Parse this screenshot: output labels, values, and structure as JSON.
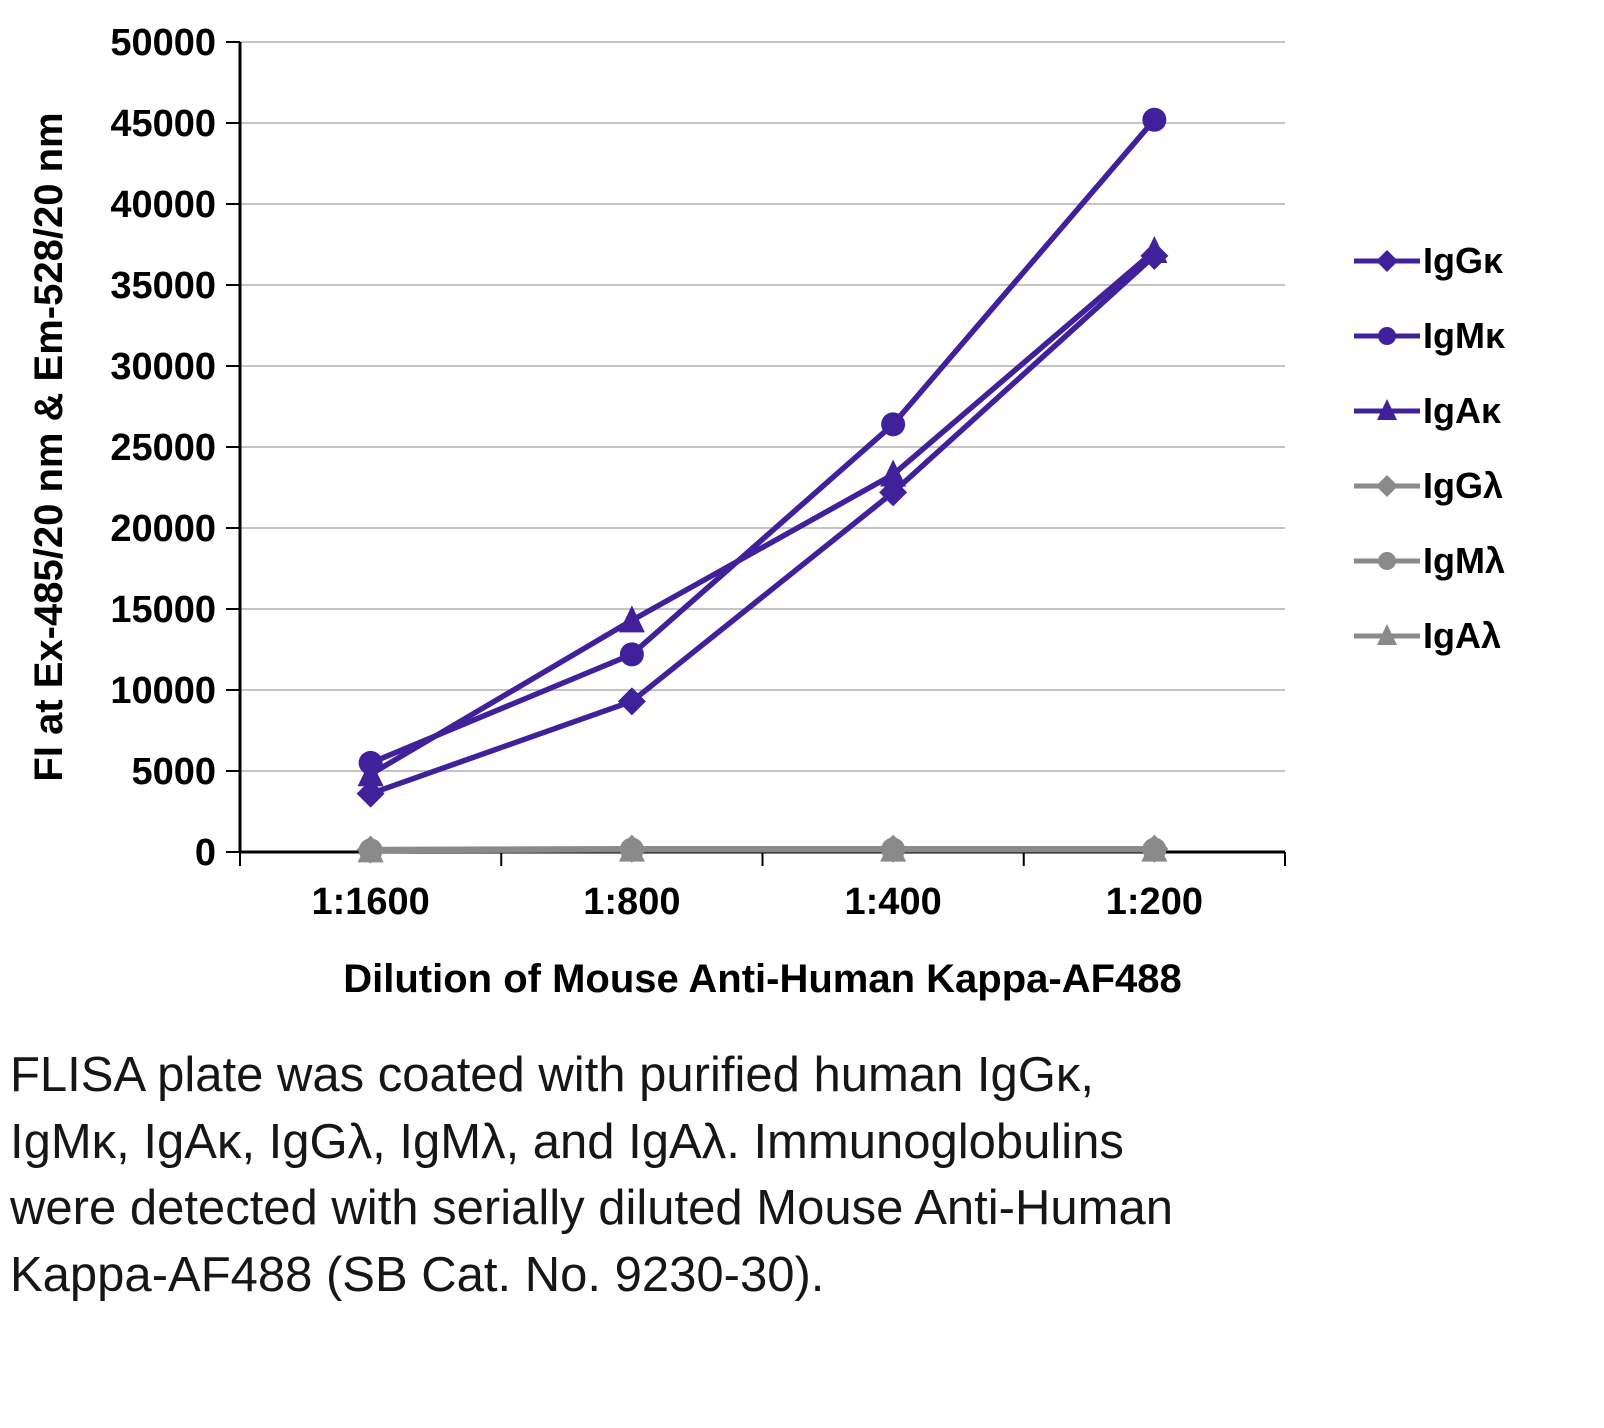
{
  "chart_data": {
    "type": "line",
    "title": "",
    "xlabel": "Dilution of Mouse Anti-Human Kappa-AF488",
    "ylabel": "FI at Ex-485/20 nm & Em-528/20 nm",
    "x_categories": [
      "1:1600",
      "1:800",
      "1:400",
      "1:200"
    ],
    "ylim": [
      0,
      50000
    ],
    "ytick_step": 5000,
    "grid": true,
    "legend_position": "right",
    "colors": {
      "kappa_series": "#41209c",
      "lambda_series": "#8a8a8a",
      "gridline": "#b0b0b0",
      "axis": "#000000"
    },
    "series": [
      {
        "name": "IgGκ",
        "marker": "diamond",
        "color": "#41209c",
        "values": [
          3600,
          9300,
          22200,
          36800
        ]
      },
      {
        "name": "IgMκ",
        "marker": "circle",
        "color": "#41209c",
        "values": [
          5500,
          12200,
          26400,
          45200
        ]
      },
      {
        "name": "IgAκ",
        "marker": "triangle",
        "color": "#41209c",
        "values": [
          4800,
          14300,
          23300,
          37100
        ]
      },
      {
        "name": "IgGλ",
        "marker": "diamond",
        "color": "#8a8a8a",
        "values": [
          150,
          200,
          200,
          200
        ]
      },
      {
        "name": "IgMλ",
        "marker": "circle",
        "color": "#8a8a8a",
        "values": [
          100,
          150,
          150,
          150
        ]
      },
      {
        "name": "IgAλ",
        "marker": "triangle",
        "color": "#8a8a8a",
        "values": [
          100,
          150,
          150,
          150
        ]
      }
    ]
  },
  "caption": "FLISA plate was coated with purified human IgGκ, IgMκ, IgAκ, IgGλ, IgMλ, and IgAλ. Immunoglobulins were detected with serially diluted Mouse Anti-Human Kappa-AF488 (SB Cat. No. 9230-30)."
}
